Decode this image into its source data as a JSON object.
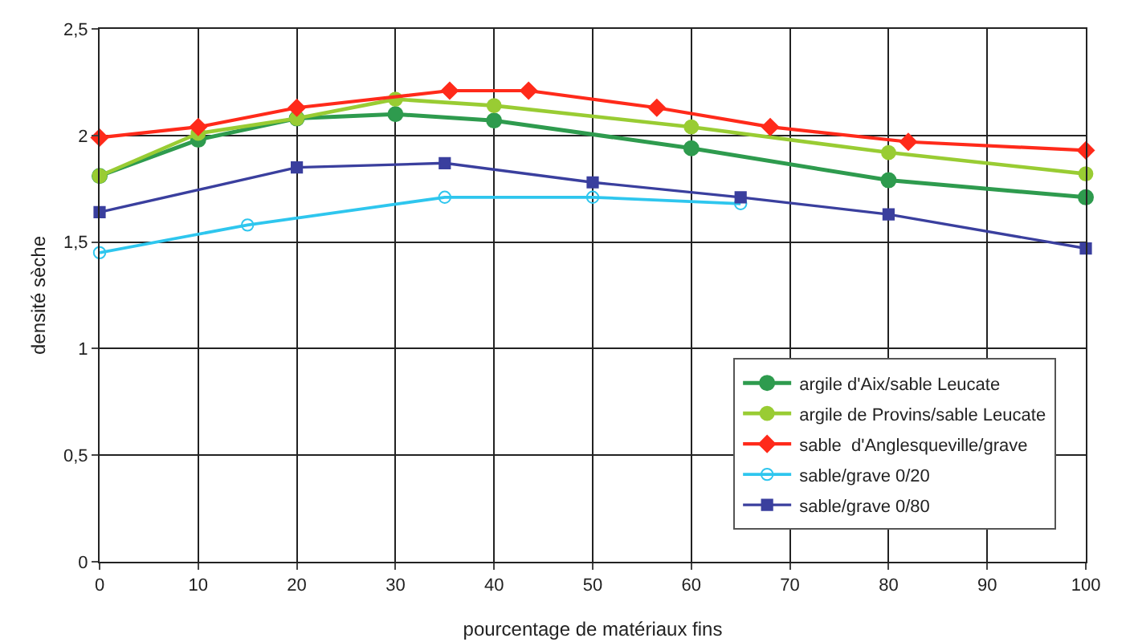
{
  "chart_data": {
    "type": "line",
    "xlabel": "pourcentage de matériaux fins",
    "ylabel": "densité sèche",
    "xlim": [
      0,
      100
    ],
    "xticks": [
      0,
      10,
      20,
      30,
      40,
      50,
      60,
      70,
      80,
      90,
      100
    ],
    "ylim": [
      0,
      2.5
    ],
    "yticks": [
      0,
      {
        "value": 0.5,
        "label": "0,5"
      },
      {
        "value": 1,
        "label": "1"
      },
      {
        "value": 1.5,
        "label": "1,5"
      },
      {
        "value": 2,
        "label": "2"
      },
      {
        "value": 2.5,
        "label": "2,5"
      }
    ],
    "grid": true,
    "legend": "bottom right",
    "line_style": "solid",
    "series": [
      {
        "name": "argile d'Aix/sable Leucate",
        "color": "#2e9b4e",
        "marker": "circle",
        "x": [
          0,
          10,
          20,
          30,
          40,
          60,
          80,
          100
        ],
        "values": [
          1.81,
          1.98,
          2.08,
          2.1,
          2.07,
          1.94,
          1.79,
          1.71
        ]
      },
      {
        "name": "argile de Provins/sable Leucate",
        "color": "#99cc33",
        "marker": "circle",
        "x": [
          0,
          10,
          20,
          30,
          40,
          60,
          80,
          100
        ],
        "values": [
          1.81,
          2.01,
          2.08,
          2.17,
          2.14,
          2.04,
          1.92,
          1.82
        ]
      },
      {
        "name": "sable  d'Anglesqueville/grave",
        "color": "#ff2a1a",
        "marker": "diamond",
        "x": [
          0,
          10,
          20,
          35.5,
          43.5,
          56.5,
          68,
          82,
          100
        ],
        "values": [
          1.99,
          2.04,
          2.13,
          2.21,
          2.21,
          2.13,
          2.04,
          1.97,
          1.93
        ]
      },
      {
        "name": "sable/grave 0/20",
        "color": "#2ec6ee",
        "marker": "circle-open",
        "x": [
          0,
          15,
          35,
          50,
          65
        ],
        "values": [
          1.45,
          1.58,
          1.71,
          1.71,
          1.68
        ]
      },
      {
        "name": "sable/grave 0/80",
        "color": "#3a3f9e",
        "marker": "square",
        "x": [
          0,
          20,
          35,
          50,
          65,
          80,
          100
        ],
        "values": [
          1.64,
          1.85,
          1.87,
          1.78,
          1.71,
          1.63,
          1.47
        ]
      }
    ]
  }
}
